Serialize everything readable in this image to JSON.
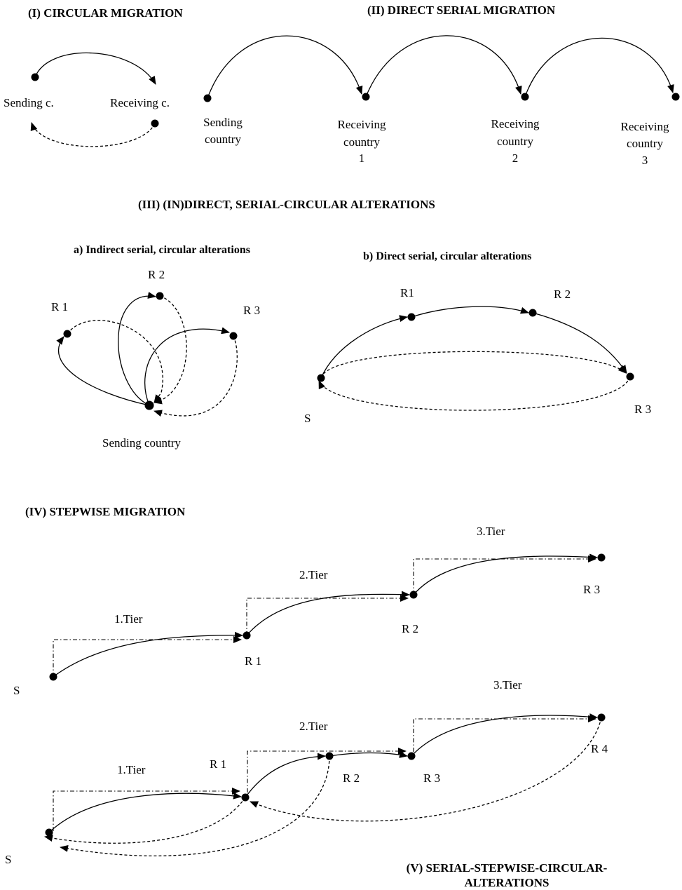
{
  "headings": {
    "circular": "(I) CIRCULAR MIGRATION",
    "direct_serial": "(II) DIRECT SERIAL MIGRATION",
    "alterations": "(III) (IN)DIRECT, SERIAL-CIRCULAR ALTERATIONS",
    "indirect_sub": "a) Indirect serial, circular alterations",
    "direct_sub": "b) Direct serial, circular alterations",
    "stepwise": "(IV) STEPWISE MIGRATION",
    "serial_stepwise_line1": "(V) SERIAL-STEPWISE-CIRCULAR-",
    "serial_stepwise_line2": "ALTERATIONS"
  },
  "circular": {
    "sending": "Sending c.",
    "receiving": "Receiving c."
  },
  "direct_serial": {
    "sending_l1": "Sending",
    "sending_l2": "country",
    "r1_l1": "Receiving",
    "r1_l2": "country",
    "r1_l3": "1",
    "r2_l1": "Receiving",
    "r2_l2": "country",
    "r2_l3": "2",
    "r3_l1": "Receiving",
    "r3_l2": "country",
    "r3_l3": "3"
  },
  "indirect": {
    "r1": "R 1",
    "r2": "R 2",
    "r3": "R 3",
    "sending": "Sending country"
  },
  "direct": {
    "r1": "R1",
    "r2": "R 2",
    "r3": "R 3",
    "s": "S"
  },
  "stepwise": {
    "tier1": "1.Tier",
    "tier2": "2.Tier",
    "tier3": "3.Tier",
    "s": "S",
    "r1": "R 1",
    "r2": "R 2",
    "r3": "R 3"
  },
  "serial_stepwise": {
    "tier1": "1.Tier",
    "tier2": "2.Tier",
    "tier3": "3.Tier",
    "s": "S",
    "r1": "R 1",
    "r2": "R 2",
    "r3": "R 3",
    "r4": "R 4"
  }
}
